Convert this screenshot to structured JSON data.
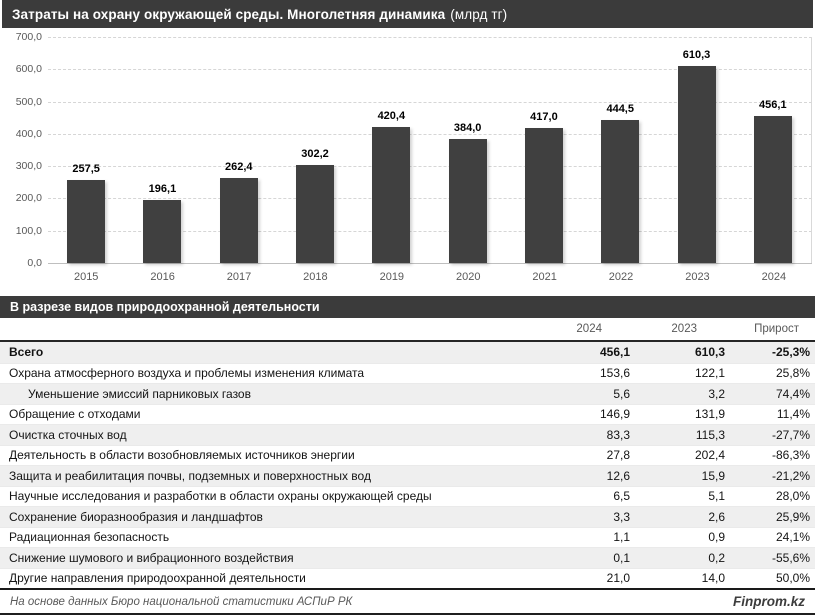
{
  "page": {
    "title_main": "Затраты на охрану окружающей среды. Многолетняя динамика",
    "title_unit": "(млрд тг)",
    "section_title": "В разрезе видов природоохранной деятельности",
    "footer_source": "На основе данных Бюро национальной статистики АСПиР РК",
    "footer_brand": "Finprom.kz"
  },
  "colors": {
    "header_bg": "#3b3b3b",
    "bar": "#404040",
    "axis_text": "#595959",
    "gridline": "#d6d6d6",
    "row_alt_bg": "#efefef",
    "heavy_border": "#262626"
  },
  "chart_data": {
    "type": "bar",
    "title": "Затраты на охрану окружающей среды. Многолетняя динамика (млрд тг)",
    "categories": [
      "2015",
      "2016",
      "2017",
      "2018",
      "2019",
      "2020",
      "2021",
      "2022",
      "2023",
      "2024"
    ],
    "values": [
      257.5,
      196.1,
      262.4,
      302.2,
      420.4,
      384.0,
      417.0,
      444.5,
      610.3,
      456.1
    ],
    "value_labels": [
      "257,5",
      "196,1",
      "262,4",
      "302,2",
      "420,4",
      "384,0",
      "417,0",
      "444,5",
      "610,3",
      "456,1"
    ],
    "xlabel": "",
    "ylabel": "",
    "ylim": [
      0,
      700
    ],
    "ytick_step": 100,
    "ytick_labels": [
      "700,0",
      "600,0",
      "500,0",
      "400,0",
      "300,0",
      "200,0",
      "100,0",
      "0,0"
    ],
    "grid": true,
    "grid_style": "dashed",
    "legend_position": "none"
  },
  "table": {
    "columns": [
      "2024",
      "2023",
      "Прирост"
    ],
    "rows": [
      {
        "name": "Всего",
        "v2024": "456,1",
        "v2023": "610,3",
        "growth": "-25,3%",
        "bold": true,
        "indent": false
      },
      {
        "name": "Охрана атмосферного воздуха и проблемы изменения климата",
        "v2024": "153,6",
        "v2023": "122,1",
        "growth": "25,8%",
        "bold": false,
        "indent": false
      },
      {
        "name": "Уменьшение эмиссий парниковых газов",
        "v2024": "5,6",
        "v2023": "3,2",
        "growth": "74,4%",
        "bold": false,
        "indent": true
      },
      {
        "name": "Обращение с отходами",
        "v2024": "146,9",
        "v2023": "131,9",
        "growth": "11,4%",
        "bold": false,
        "indent": false
      },
      {
        "name": "Очистка сточных вод",
        "v2024": "83,3",
        "v2023": "115,3",
        "growth": "-27,7%",
        "bold": false,
        "indent": false
      },
      {
        "name": "Деятельность в области возобновляемых источников энергии",
        "v2024": "27,8",
        "v2023": "202,4",
        "growth": "-86,3%",
        "bold": false,
        "indent": false
      },
      {
        "name": "Защита и реабилитация почвы, подземных и поверхностных вод",
        "v2024": "12,6",
        "v2023": "15,9",
        "growth": "-21,2%",
        "bold": false,
        "indent": false
      },
      {
        "name": "Научные исследования и разработки в области охраны окружающей среды",
        "v2024": "6,5",
        "v2023": "5,1",
        "growth": "28,0%",
        "bold": false,
        "indent": false
      },
      {
        "name": "Сохранение биоразнообразия и ландшафтов",
        "v2024": "3,3",
        "v2023": "2,6",
        "growth": "25,9%",
        "bold": false,
        "indent": false
      },
      {
        "name": "Радиационная безопасность",
        "v2024": "1,1",
        "v2023": "0,9",
        "growth": "24,1%",
        "bold": false,
        "indent": false
      },
      {
        "name": "Снижение шумового и вибрационного воздействия",
        "v2024": "0,1",
        "v2023": "0,2",
        "growth": "-55,6%",
        "bold": false,
        "indent": false
      },
      {
        "name": "Другие направления природоохранной деятельности",
        "v2024": "21,0",
        "v2023": "14,0",
        "growth": "50,0%",
        "bold": false,
        "indent": false
      }
    ]
  }
}
